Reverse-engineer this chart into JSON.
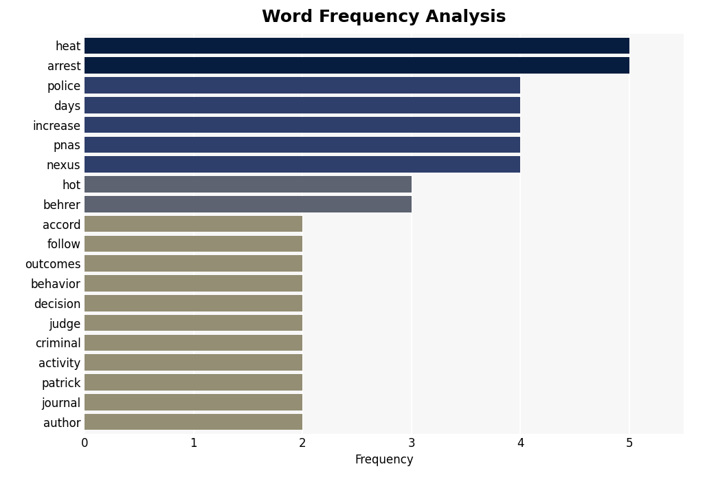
{
  "title": "Word Frequency Analysis",
  "categories": [
    "heat",
    "arrest",
    "police",
    "days",
    "increase",
    "pnas",
    "nexus",
    "hot",
    "behrer",
    "accord",
    "follow",
    "outcomes",
    "behavior",
    "decision",
    "judge",
    "criminal",
    "activity",
    "patrick",
    "journal",
    "author"
  ],
  "values": [
    5,
    5,
    4,
    4,
    4,
    4,
    4,
    3,
    3,
    2,
    2,
    2,
    2,
    2,
    2,
    2,
    2,
    2,
    2,
    2
  ],
  "bar_colors": [
    "#071d3f",
    "#071d3f",
    "#2f3f6b",
    "#2f3f6b",
    "#2f3f6b",
    "#2f3f6b",
    "#2f3f6b",
    "#5d6370",
    "#5d6370",
    "#938e74",
    "#938e74",
    "#938e74",
    "#938e74",
    "#938e74",
    "#938e74",
    "#938e74",
    "#938e74",
    "#938e74",
    "#938e74",
    "#938e74"
  ],
  "xlabel": "Frequency",
  "xlim": [
    0,
    5.5
  ],
  "xticks": [
    0,
    1,
    2,
    3,
    4,
    5
  ],
  "fig_background_color": "#ffffff",
  "plot_background_color": "#f7f7f7",
  "title_fontsize": 18,
  "label_fontsize": 12,
  "tick_fontsize": 12,
  "bar_height": 0.82
}
